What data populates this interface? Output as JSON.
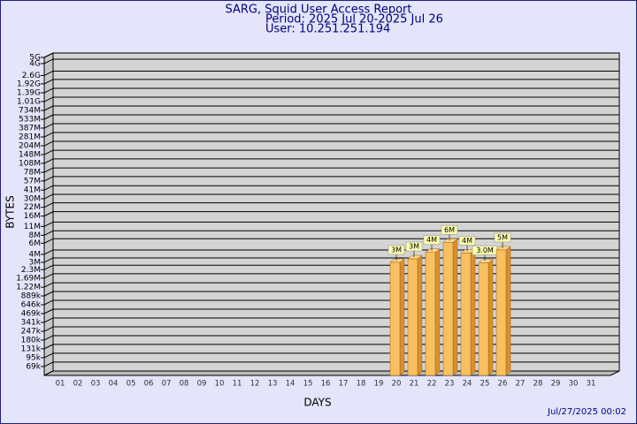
{
  "chart_data": {
    "type": "bar",
    "title": "SARG, Squid User Access Report",
    "subtitle": [
      "Period: 2025 Jul 20-2025 Jul 26",
      "User: 10.251.251.194"
    ],
    "x_label": "DAYS",
    "y_label": "BYTES",
    "footer": "Jul/27/2025 00:02",
    "log_scale": true,
    "grid": true,
    "color": "#f8c060",
    "categories": [
      "01",
      "02",
      "03",
      "04",
      "05",
      "06",
      "07",
      "08",
      "09",
      "10",
      "11",
      "12",
      "13",
      "14",
      "15",
      "16",
      "17",
      "18",
      "19",
      "20",
      "21",
      "22",
      "23",
      "24",
      "25",
      "26",
      "27",
      "28",
      "29",
      "30",
      "31"
    ],
    "values": [
      null,
      null,
      null,
      null,
      null,
      null,
      null,
      null,
      null,
      null,
      null,
      null,
      null,
      null,
      null,
      null,
      null,
      null,
      null,
      3000000,
      3400000,
      4300000,
      6200000,
      4200000,
      2950000,
      4700000,
      null,
      null,
      null,
      null,
      null
    ],
    "value_labels": [
      null,
      null,
      null,
      null,
      null,
      null,
      null,
      null,
      null,
      null,
      null,
      null,
      null,
      null,
      null,
      null,
      null,
      null,
      null,
      "3M",
      "3M",
      "4M",
      "6M",
      "4M",
      "3.0M",
      "5M",
      null,
      null,
      null,
      null,
      null
    ],
    "ylim": [
      50000,
      5000000000
    ],
    "yticks": [
      {
        "value": 69000,
        "label": "69k"
      },
      {
        "value": 95000,
        "label": "95k"
      },
      {
        "value": 131000,
        "label": "131k"
      },
      {
        "value": 180000,
        "label": "180k"
      },
      {
        "value": 247000,
        "label": "247k"
      },
      {
        "value": 341000,
        "label": "341k"
      },
      {
        "value": 469000,
        "label": "469k"
      },
      {
        "value": 646000,
        "label": "646k"
      },
      {
        "value": 889000,
        "label": "889k"
      },
      {
        "value": 1220000,
        "label": "1.22M"
      },
      {
        "value": 1690000,
        "label": "1.69M"
      },
      {
        "value": 2300000,
        "label": "2.3M"
      },
      {
        "value": 3000000,
        "label": "3M"
      },
      {
        "value": 4000000,
        "label": "4M"
      },
      {
        "value": 6000000,
        "label": "6M"
      },
      {
        "value": 8000000,
        "label": "8M"
      },
      {
        "value": 11000000,
        "label": "11M"
      },
      {
        "value": 16000000,
        "label": "16M"
      },
      {
        "value": 22000000,
        "label": "22M"
      },
      {
        "value": 30000000,
        "label": "30M"
      },
      {
        "value": 41000000,
        "label": "41M"
      },
      {
        "value": 57000000,
        "label": "57M"
      },
      {
        "value": 78000000,
        "label": "78M"
      },
      {
        "value": 108000000,
        "label": "108M"
      },
      {
        "value": 148000000,
        "label": "148M"
      },
      {
        "value": 204000000,
        "label": "204M"
      },
      {
        "value": 281000000,
        "label": "281M"
      },
      {
        "value": 387000000,
        "label": "387M"
      },
      {
        "value": 533000000,
        "label": "533M"
      },
      {
        "value": 734000000,
        "label": "734M"
      },
      {
        "value": 1010000000,
        "label": "1.01G"
      },
      {
        "value": 1390000000,
        "label": "1.39G"
      },
      {
        "value": 1920000000,
        "label": "1.92G"
      },
      {
        "value": 2600000000,
        "label": "2.6G"
      },
      {
        "value": 4000000000,
        "label": "4G"
      },
      {
        "value": 5000000000,
        "label": "5G"
      }
    ]
  }
}
